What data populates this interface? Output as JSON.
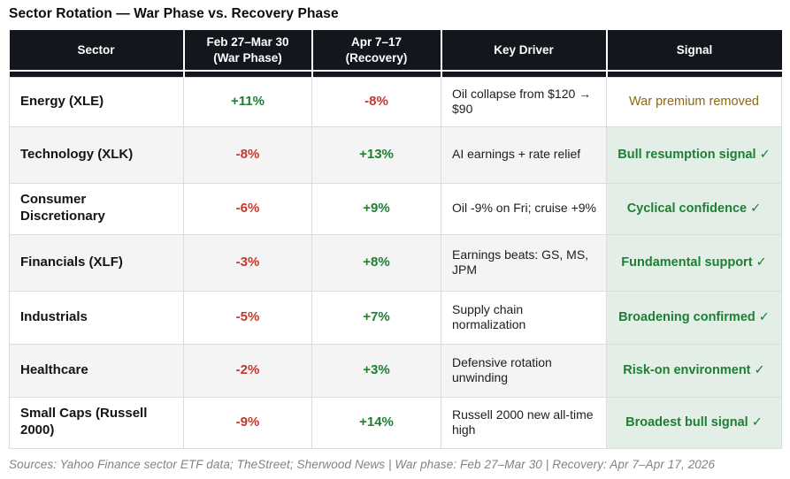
{
  "title": "Sector Rotation — War Phase vs. Recovery Phase",
  "colors": {
    "header_bg": "#14161e",
    "positive_green": "#1e7e34",
    "negative_red": "#c5382a",
    "signal_green_bg": "#e3efe6",
    "signal_gold_text": "#8b6914",
    "even_row_bg": "#f4f4f5"
  },
  "chart_data": {
    "type": "table",
    "title": "Sector Rotation — War Phase vs. Recovery Phase",
    "columns": {
      "sector": "Sector",
      "war_line1": "Feb 27–Mar 30",
      "war_line2": "(War Phase)",
      "recovery_line1": "Apr 7–17",
      "recovery_line2": "(Recovery)",
      "key_driver": "Key Driver",
      "signal": "Signal"
    },
    "rows": [
      {
        "sector": "Energy (XLE)",
        "war": "+11%",
        "recovery": "-8%",
        "key_driver": "Oil collapse from $120 → $90",
        "signal": "War premium removed"
      },
      {
        "sector": "Technology (XLK)",
        "war": "-8%",
        "recovery": "+13%",
        "key_driver": "AI earnings + rate relief",
        "signal": "Bull resumption signal ✓"
      },
      {
        "sector": "Consumer Discretionary",
        "war": "-6%",
        "recovery": "+9%",
        "key_driver": "Oil -9% on Fri; cruise +9%",
        "signal": "Cyclical confidence ✓"
      },
      {
        "sector": "Financials (XLF)",
        "war": "-3%",
        "recovery": "+8%",
        "key_driver": "Earnings beats: GS, MS, JPM",
        "signal": "Fundamental support ✓"
      },
      {
        "sector": "Industrials",
        "war": "-5%",
        "recovery": "+7%",
        "key_driver": "Supply chain normalization",
        "signal": "Broadening confirmed ✓"
      },
      {
        "sector": "Healthcare",
        "war": "-2%",
        "recovery": "+3%",
        "key_driver": "Defensive rotation unwinding",
        "signal": "Risk-on environment ✓"
      },
      {
        "sector": "Small Caps (Russell 2000)",
        "war": "-9%",
        "recovery": "+14%",
        "key_driver": "Russell 2000 new all-time high",
        "signal": "Broadest bull signal ✓"
      }
    ],
    "war_phase_values": [
      11,
      -8,
      -6,
      -3,
      -5,
      -2,
      -9
    ],
    "recovery_values": [
      -8,
      13,
      9,
      8,
      7,
      3,
      14
    ],
    "value_unit": "percent"
  },
  "footer": "Sources: Yahoo Finance sector ETF data; TheStreet; Sherwood News | War phase: Feb 27–Mar 30 | Recovery: Apr 7–Apr 17, 2026"
}
